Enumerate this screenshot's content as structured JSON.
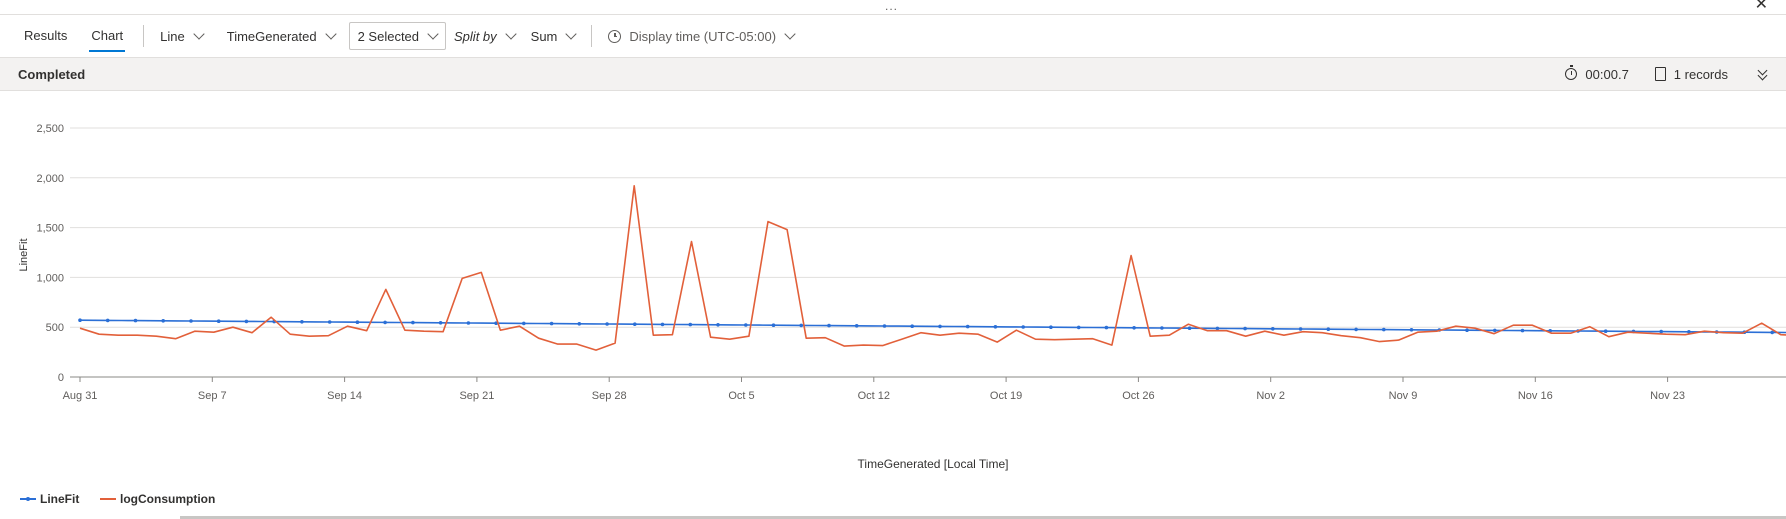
{
  "window": {
    "grip": "...",
    "close_icon": "close-icon"
  },
  "tabs": [
    {
      "label": "Results"
    },
    {
      "label": "Chart"
    }
  ],
  "toolbar": {
    "chart_type": "Line",
    "x_column": "TimeGenerated",
    "y_columns": "2 Selected",
    "split_by": "Split by",
    "aggregation": "Sum",
    "display_time": "Display time (UTC-05:00)"
  },
  "status": {
    "text": "Completed",
    "duration": "00:00.7",
    "records": "1 records"
  },
  "colors": {
    "linefit": "#2b6fd6",
    "logconsumption": "#e2603a",
    "accent": "#0078d4"
  },
  "chart_data": {
    "type": "line",
    "xlabel": "TimeGenerated [Local Time]",
    "ylabel": "LineFit",
    "ylim": [
      0,
      2500
    ],
    "y_ticks": [
      "0",
      "500",
      "1,000",
      "1,500",
      "2,000",
      "2,500"
    ],
    "y_tick_values": [
      0,
      500,
      1000,
      1500,
      2000,
      2500
    ],
    "x_ticks": [
      "Aug 31",
      "Sep 7",
      "Sep 14",
      "Sep 21",
      "Sep 28",
      "Oct 5",
      "Oct 12",
      "Oct 19",
      "Oct 26",
      "Nov 2",
      "Nov 9",
      "Nov 16",
      "Nov 23"
    ],
    "x_range_days": [
      0,
      91
    ],
    "grid": true,
    "legend_position": "bottom-left",
    "series": [
      {
        "name": "LineFit",
        "x_start_label": "Aug 31",
        "values": [
          570,
          569,
          568,
          567,
          566,
          565,
          564,
          563,
          562,
          561,
          560,
          559,
          558,
          557,
          556,
          555,
          554,
          553,
          552,
          551,
          550,
          549,
          548,
          547,
          546,
          545,
          544,
          543,
          542,
          541,
          540,
          539,
          538,
          537,
          536,
          535,
          534,
          533,
          532,
          531,
          530,
          529,
          528,
          527,
          526,
          525,
          524,
          523,
          522,
          521,
          520,
          519,
          518,
          517,
          516,
          515,
          514,
          513,
          512,
          511,
          510,
          509,
          508,
          507,
          506,
          505,
          504,
          503,
          502,
          501,
          500,
          499,
          498,
          497,
          496,
          495,
          494,
          493,
          492,
          491,
          490,
          489,
          488,
          487,
          486,
          485,
          484,
          483,
          482,
          481,
          480,
          479,
          478,
          477,
          476,
          475,
          474,
          473,
          472,
          471,
          470,
          469,
          468,
          467,
          466,
          465,
          464,
          463,
          462,
          461,
          460,
          459,
          458,
          457,
          456,
          455,
          454,
          453,
          452,
          451,
          450,
          449,
          448,
          447,
          446
        ]
      },
      {
        "name": "logConsumption",
        "x_start_label": "Aug 31",
        "values": [
          490,
          430,
          420,
          420,
          410,
          385,
          460,
          450,
          500,
          445,
          600,
          430,
          410,
          415,
          510,
          465,
          880,
          470,
          460,
          455,
          990,
          1050,
          470,
          510,
          390,
          330,
          330,
          270,
          340,
          1920,
          420,
          425,
          1360,
          400,
          380,
          410,
          1560,
          1480,
          390,
          395,
          310,
          320,
          315,
          380,
          445,
          420,
          440,
          430,
          350,
          470,
          380,
          375,
          380,
          385,
          320,
          1220,
          410,
          420,
          530,
          465,
          465,
          410,
          460,
          420,
          455,
          445,
          415,
          395,
          355,
          370,
          450,
          460,
          510,
          490,
          435,
          520,
          520,
          440,
          440,
          505,
          405,
          450,
          440,
          430,
          425,
          460,
          445,
          440,
          540,
          425,
          415
        ]
      }
    ]
  }
}
